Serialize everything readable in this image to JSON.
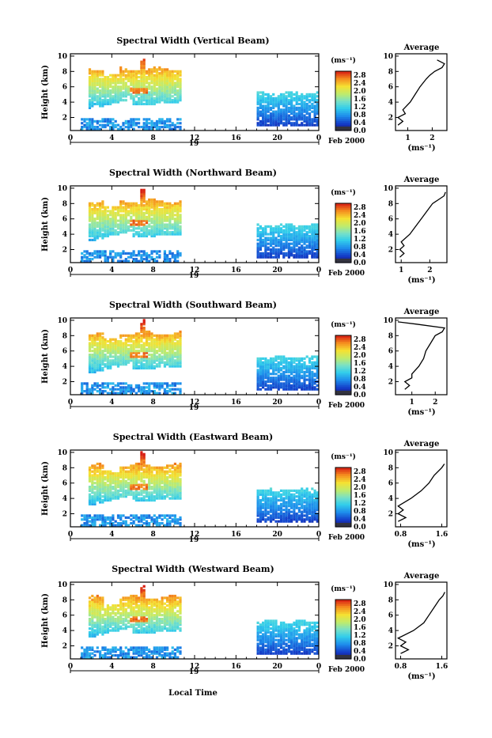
{
  "figure": {
    "x_axis_label": "Local Time",
    "date_label": "Feb 2000",
    "day_label": "19"
  },
  "chart_data": [
    {
      "type": "heatmap",
      "title": "Spectral Width (Vertical Beam)",
      "ylabel": "Height (km)",
      "xlabel": "Local Time",
      "x_ticks": [
        "0",
        "4",
        "8",
        "12",
        "16",
        "20",
        "0"
      ],
      "y_ticks": [
        "2",
        "4",
        "6",
        "8",
        "10"
      ],
      "xlim": [
        0,
        24
      ],
      "ylim": [
        0.3,
        10.3
      ],
      "colorbar": {
        "unit": "(ms⁻¹)",
        "ticks": [
          "0.0",
          "0.4",
          "0.8",
          "1.2",
          "1.6",
          "2.0",
          "2.4",
          "2.8"
        ],
        "range": [
          0,
          3.0
        ]
      },
      "profile": {
        "title": "Average",
        "xlabel": "(ms⁻¹)",
        "x_ticks": [
          "1",
          "2"
        ],
        "x_tick_values": [
          1,
          2
        ],
        "xlim": [
          0.5,
          2.6
        ],
        "y_ticks": [
          "2",
          "4",
          "6",
          "8",
          "10"
        ],
        "heights": [
          1.0,
          1.5,
          2.0,
          2.5,
          3.0,
          4.0,
          5.0,
          6.0,
          7.0,
          7.5,
          8.0,
          8.5,
          9.0,
          9.5
        ],
        "values": [
          0.6,
          0.8,
          0.6,
          0.9,
          0.8,
          1.1,
          1.3,
          1.5,
          1.75,
          1.9,
          2.1,
          2.4,
          2.5,
          2.2
        ]
      }
    },
    {
      "type": "heatmap",
      "title": "Spectral Width (Northward Beam)",
      "ylabel": "Height (km)",
      "xlabel": "Local Time",
      "x_ticks": [
        "0",
        "4",
        "8",
        "12",
        "16",
        "20",
        "0"
      ],
      "y_ticks": [
        "2",
        "4",
        "6",
        "8",
        "10"
      ],
      "xlim": [
        0,
        24
      ],
      "ylim": [
        0.3,
        10.3
      ],
      "colorbar": {
        "unit": "(ms⁻¹)",
        "ticks": [
          "0.0",
          "0.4",
          "0.8",
          "1.2",
          "1.6",
          "2.0",
          "2.4",
          "2.8"
        ],
        "range": [
          0,
          3.0
        ]
      },
      "profile": {
        "title": "Average",
        "xlabel": "(ms⁻¹)",
        "x_ticks": [
          "1",
          "2"
        ],
        "x_tick_values": [
          1,
          2
        ],
        "xlim": [
          0.8,
          2.6
        ],
        "y_ticks": [
          "2",
          "4",
          "6",
          "8",
          "10"
        ],
        "heights": [
          1.0,
          1.5,
          2.0,
          2.5,
          3.0,
          4.0,
          5.0,
          6.0,
          7.0,
          8.0,
          8.5,
          9.0,
          9.5
        ],
        "values": [
          0.95,
          1.1,
          0.95,
          1.1,
          1.0,
          1.3,
          1.5,
          1.7,
          1.9,
          2.1,
          2.3,
          2.5,
          2.55
        ]
      }
    },
    {
      "type": "heatmap",
      "title": "Spectral Width (Southward Beam)",
      "ylabel": "Height (km)",
      "xlabel": "Local Time",
      "x_ticks": [
        "0",
        "4",
        "8",
        "12",
        "16",
        "20",
        "0"
      ],
      "y_ticks": [
        "2",
        "4",
        "6",
        "8",
        "10"
      ],
      "xlim": [
        0,
        24
      ],
      "ylim": [
        0.3,
        10.3
      ],
      "colorbar": {
        "unit": "(ms⁻¹)",
        "ticks": [
          "0.0",
          "0.4",
          "0.8",
          "1.2",
          "1.6",
          "2.0",
          "2.4",
          "2.8"
        ],
        "range": [
          0,
          3.0
        ]
      },
      "profile": {
        "title": "Average",
        "xlabel": "(ms⁻¹)",
        "x_ticks": [
          "1",
          "2"
        ],
        "x_tick_values": [
          1,
          2
        ],
        "xlim": [
          0.3,
          2.5
        ],
        "y_ticks": [
          "2",
          "4",
          "6",
          "8",
          "10"
        ],
        "heights": [
          1.0,
          1.5,
          2.0,
          2.5,
          3.0,
          4.0,
          5.0,
          6.0,
          7.0,
          8.0,
          8.5,
          9.0,
          9.5,
          9.8
        ],
        "values": [
          0.7,
          0.9,
          0.7,
          1.0,
          1.0,
          1.3,
          1.5,
          1.6,
          1.8,
          2.0,
          2.3,
          2.4,
          1.2,
          0.4
        ]
      }
    },
    {
      "type": "heatmap",
      "title": "Spectral Width (Eastward Beam)",
      "ylabel": "Height (km)",
      "xlabel": "Local Time",
      "x_ticks": [
        "0",
        "4",
        "8",
        "12",
        "16",
        "20",
        "0"
      ],
      "y_ticks": [
        "2",
        "4",
        "6",
        "8",
        "10"
      ],
      "xlim": [
        0,
        24
      ],
      "ylim": [
        0.3,
        10.3
      ],
      "colorbar": {
        "unit": "(ms⁻¹)",
        "ticks": [
          "0.0",
          "0.4",
          "0.8",
          "1.2",
          "1.6",
          "2.0",
          "2.4",
          "2.8"
        ],
        "range": [
          0,
          3.0
        ]
      },
      "profile": {
        "title": "Average",
        "xlabel": "(ms⁻¹)",
        "x_ticks": [
          "0.8",
          "1.6"
        ],
        "x_tick_values": [
          0.8,
          1.6
        ],
        "xlim": [
          0.7,
          1.7
        ],
        "y_ticks": [
          "2",
          "4",
          "6",
          "8",
          "10"
        ],
        "heights": [
          1.0,
          1.5,
          2.0,
          2.5,
          3.0,
          4.0,
          5.0,
          6.0,
          7.0,
          8.0,
          8.5
        ],
        "values": [
          0.75,
          0.9,
          0.75,
          0.85,
          0.75,
          1.0,
          1.2,
          1.35,
          1.45,
          1.6,
          1.65
        ]
      }
    },
    {
      "type": "heatmap",
      "title": "Spectral Width (Westward Beam)",
      "ylabel": "Height (km)",
      "xlabel": "Local Time",
      "x_ticks": [
        "0",
        "4",
        "8",
        "12",
        "16",
        "20",
        "0"
      ],
      "y_ticks": [
        "2",
        "4",
        "6",
        "8",
        "10"
      ],
      "xlim": [
        0,
        24
      ],
      "ylim": [
        0.3,
        10.3
      ],
      "colorbar": {
        "unit": "(ms⁻¹)",
        "ticks": [
          "0.0",
          "0.4",
          "0.8",
          "1.2",
          "1.6",
          "2.0",
          "2.4",
          "2.8"
        ],
        "range": [
          0,
          3.0
        ]
      },
      "profile": {
        "title": "Average",
        "xlabel": "(ms⁻¹)",
        "x_ticks": [
          "0.8",
          "1.6"
        ],
        "x_tick_values": [
          0.8,
          1.6
        ],
        "xlim": [
          0.7,
          1.7
        ],
        "y_ticks": [
          "2",
          "4",
          "6",
          "8",
          "10"
        ],
        "heights": [
          1.0,
          1.5,
          2.0,
          2.5,
          3.0,
          4.0,
          5.0,
          6.0,
          7.0,
          8.0,
          8.5,
          9.0
        ],
        "values": [
          0.8,
          0.95,
          0.8,
          0.9,
          0.75,
          1.05,
          1.25,
          1.35,
          1.45,
          1.55,
          1.62,
          1.66
        ]
      }
    }
  ]
}
